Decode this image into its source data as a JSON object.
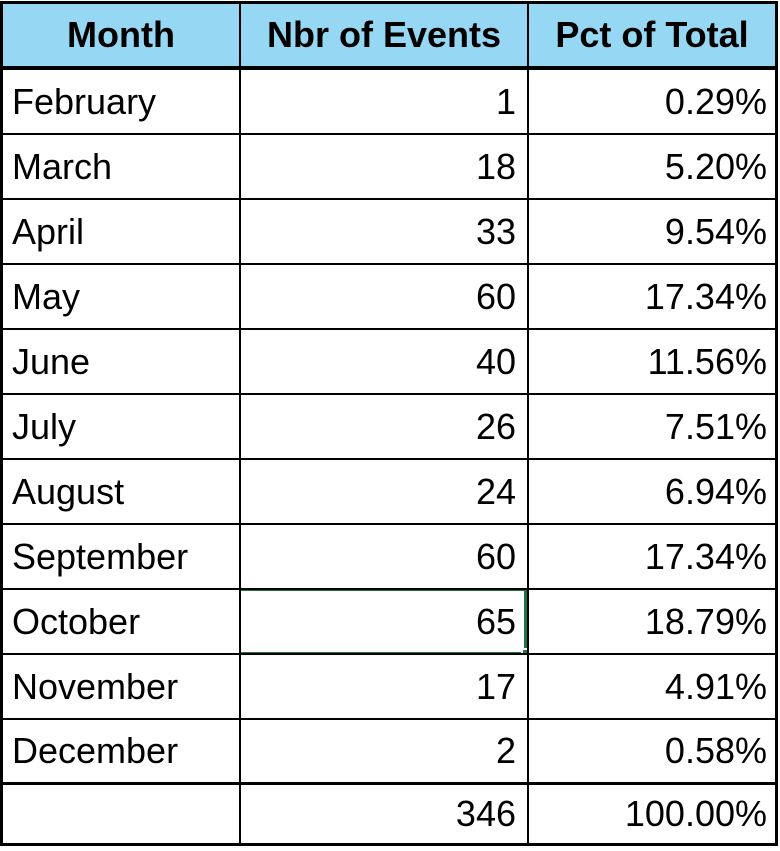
{
  "colors": {
    "header_bg": "#96D7F3",
    "grid_line": "#000000",
    "selection_green": "#217346",
    "text": "#000000",
    "cell_bg": "#FFFFFF"
  },
  "table": {
    "header": {
      "month": "Month",
      "events": "Nbr of Events",
      "pct": "Pct of Total"
    },
    "rows": [
      {
        "month": "February",
        "events": "1",
        "pct": "0.29%"
      },
      {
        "month": "March",
        "events": "18",
        "pct": "5.20%"
      },
      {
        "month": "April",
        "events": "33",
        "pct": "9.54%"
      },
      {
        "month": "May",
        "events": "60",
        "pct": "17.34%"
      },
      {
        "month": "June",
        "events": "40",
        "pct": "11.56%"
      },
      {
        "month": "July",
        "events": "26",
        "pct": "7.51%"
      },
      {
        "month": "August",
        "events": "24",
        "pct": "6.94%"
      },
      {
        "month": "September",
        "events": "60",
        "pct": "17.34%"
      },
      {
        "month": "October",
        "events": "65",
        "pct": "18.79%"
      },
      {
        "month": "November",
        "events": "17",
        "pct": "4.91%"
      },
      {
        "month": "December",
        "events": "2",
        "pct": "0.58%"
      }
    ],
    "total": {
      "month": "",
      "events": "346",
      "pct": "100.00%"
    }
  },
  "selection": {
    "row": "October",
    "column": "Nbr of Events",
    "value": "65",
    "border_color": "#217346",
    "has_fill_handle": true
  },
  "chart_data": {
    "type": "table",
    "columns": [
      "Month",
      "Nbr of Events",
      "Pct of Total"
    ],
    "categories": [
      "February",
      "March",
      "April",
      "May",
      "June",
      "July",
      "August",
      "September",
      "October",
      "November",
      "December"
    ],
    "series": [
      {
        "name": "Nbr of Events",
        "values": [
          1,
          18,
          33,
          60,
          40,
          26,
          24,
          60,
          65,
          17,
          2
        ]
      },
      {
        "name": "Pct of Total",
        "values": [
          "0.29%",
          "5.20%",
          "9.54%",
          "17.34%",
          "11.56%",
          "7.51%",
          "6.94%",
          "17.34%",
          "18.79%",
          "4.91%",
          "0.58%"
        ]
      }
    ],
    "total": {
      "events": 346,
      "pct": "100.00%"
    }
  }
}
